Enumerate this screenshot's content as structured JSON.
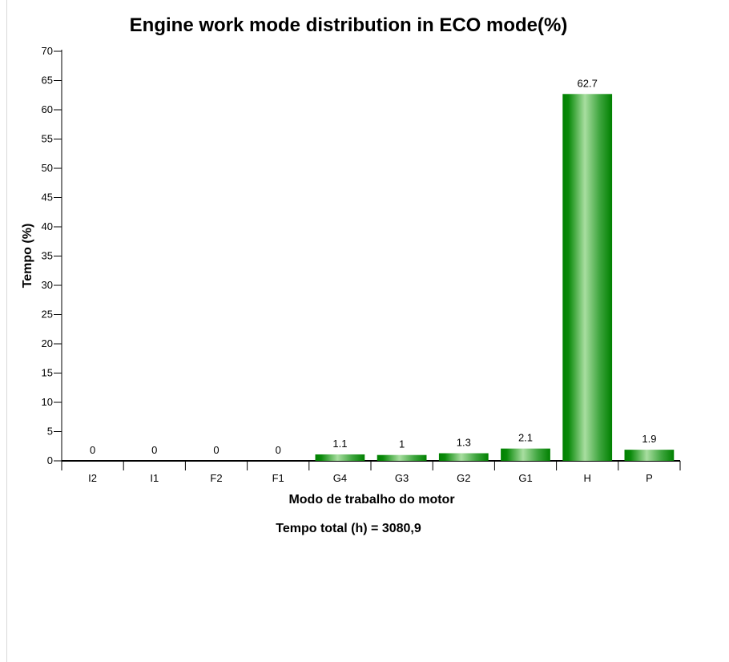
{
  "chart_data": {
    "type": "bar",
    "title": "Engine work mode distribution in ECO mode(%)",
    "xlabel": "Modo de trabalho do motor",
    "ylabel": "Tempo (%)",
    "footer": "Tempo total (h) = 3080,9",
    "categories": [
      "I2",
      "I1",
      "F2",
      "F1",
      "G4",
      "G3",
      "G2",
      "G1",
      "H",
      "P"
    ],
    "values": [
      0,
      0,
      0,
      0,
      1.1,
      1,
      1.3,
      2.1,
      62.7,
      1.9
    ],
    "value_labels": [
      "0",
      "0",
      "0",
      "0",
      "1.1",
      "1",
      "1.3",
      "2.1",
      "62.7",
      "1.9"
    ],
    "ylim": [
      0,
      70
    ],
    "yticks": [
      0,
      5,
      10,
      15,
      20,
      25,
      30,
      35,
      40,
      45,
      50,
      55,
      60,
      65,
      70
    ],
    "grid": false,
    "legend": "none",
    "colors": {
      "bar_dark": "#008000",
      "bar_light": "#a8dea0",
      "axis": "#000000"
    }
  }
}
